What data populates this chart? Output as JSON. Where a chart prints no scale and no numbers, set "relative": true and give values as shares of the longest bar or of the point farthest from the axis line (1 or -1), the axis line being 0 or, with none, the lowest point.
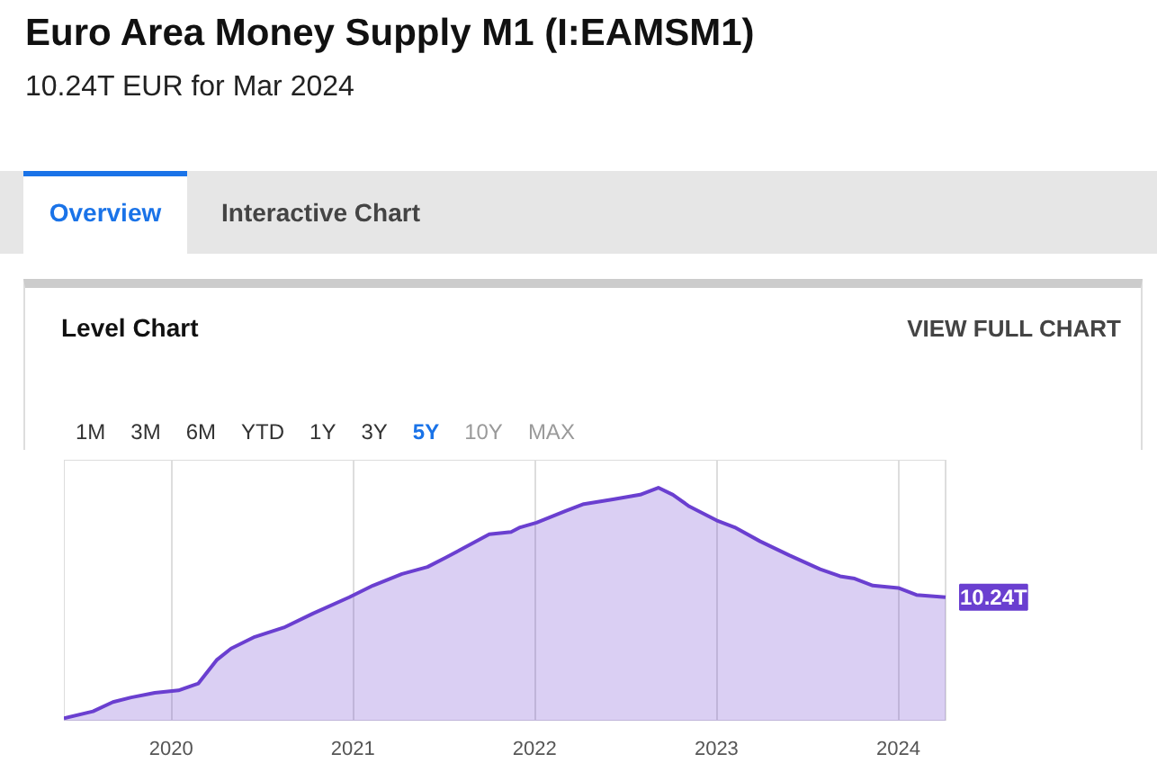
{
  "chart_data": {
    "type": "area",
    "title": "Euro Area Money Supply M1 (I:EAMSM1)",
    "subtitle": "10.24T EUR for Mar 2024",
    "annotations": [
      "Overview",
      "Interactive Chart",
      "Level Chart",
      "VIEW FULL CHART",
      "1M",
      "3M",
      "6M",
      "YTD",
      "1Y",
      "3Y",
      "5Y",
      "10Y",
      "MAX",
      {
        "text": "10.24T",
        "x": 2024.26,
        "y": 0.53
      }
    ],
    "relative": true,
    "xlim": [
      2019.41,
      2024.26
    ],
    "xticks": [
      2020,
      2021,
      2022,
      2023,
      2024
    ],
    "grid": "x",
    "x": [
      2019.41,
      2019.57,
      2019.68,
      2019.78,
      2019.91,
      2020.04,
      2020.15,
      2020.25,
      2020.33,
      2020.46,
      2020.62,
      2020.78,
      2020.98,
      2021.11,
      2021.27,
      2021.41,
      2021.51,
      2021.75,
      2021.87,
      2021.92,
      2022.01,
      2022.17,
      2022.27,
      2022.43,
      2022.58,
      2022.68,
      2022.76,
      2022.85,
      2023.0,
      2023.1,
      2023.24,
      2023.4,
      2023.57,
      2023.68,
      2023.76,
      2023.86,
      2024.0,
      2024.1,
      2024.26
    ],
    "series": [
      {
        "color": "#6a3fd0",
        "values": [
          0.01,
          0.04,
          0.08,
          0.1,
          0.12,
          0.13,
          0.16,
          0.26,
          0.31,
          0.36,
          0.4,
          0.46,
          0.53,
          0.58,
          0.63,
          0.66,
          0.7,
          0.8,
          0.81,
          0.83,
          0.85,
          0.9,
          0.93,
          0.95,
          0.97,
          1,
          0.97,
          0.92,
          0.86,
          0.83,
          0.77,
          0.71,
          0.65,
          0.62,
          0.61,
          0.58,
          0.57,
          0.54,
          0.53
        ]
      }
    ]
  }
}
